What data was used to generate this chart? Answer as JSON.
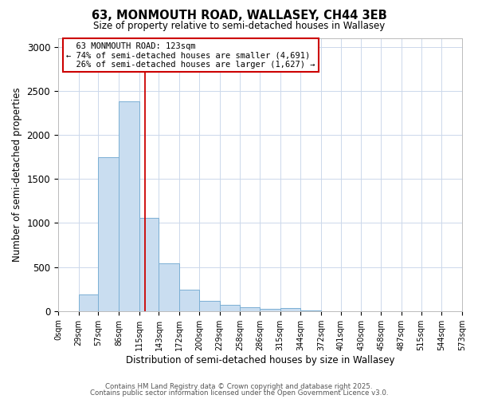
{
  "title": "63, MONMOUTH ROAD, WALLASEY, CH44 3EB",
  "subtitle": "Size of property relative to semi-detached houses in Wallasey",
  "xlabel": "Distribution of semi-detached houses by size in Wallasey",
  "ylabel": "Number of semi-detached properties",
  "property_size": 123,
  "property_label": "63 MONMOUTH ROAD: 123sqm",
  "pct_smaller": 74,
  "pct_larger": 26,
  "n_smaller": 4691,
  "n_larger": 1627,
  "bin_edges": [
    0,
    29,
    57,
    86,
    115,
    143,
    172,
    200,
    229,
    258,
    286,
    315,
    344,
    373,
    401,
    430,
    458,
    487,
    515,
    544,
    573
  ],
  "bar_heights": [
    0,
    185,
    1750,
    2380,
    1060,
    540,
    240,
    120,
    75,
    40,
    25,
    35,
    10,
    0,
    0,
    0,
    0,
    0,
    0,
    0
  ],
  "bar_color": "#c9ddf0",
  "bar_edge_color": "#7bafd4",
  "redline_color": "#cc0000",
  "annotation_box_color": "#cc0000",
  "background_color": "#ffffff",
  "grid_color": "#ccd8eb",
  "footer_line1": "Contains HM Land Registry data © Crown copyright and database right 2025.",
  "footer_line2": "Contains public sector information licensed under the Open Government Licence v3.0.",
  "ylim": [
    0,
    3100
  ],
  "yticks": [
    0,
    500,
    1000,
    1500,
    2000,
    2500,
    3000
  ],
  "tick_labels": [
    "0sqm",
    "29sqm",
    "57sqm",
    "86sqm",
    "115sqm",
    "143sqm",
    "172sqm",
    "200sqm",
    "229sqm",
    "258sqm",
    "286sqm",
    "315sqm",
    "344sqm",
    "372sqm",
    "401sqm",
    "430sqm",
    "458sqm",
    "487sqm",
    "515sqm",
    "544sqm",
    "573sqm"
  ]
}
